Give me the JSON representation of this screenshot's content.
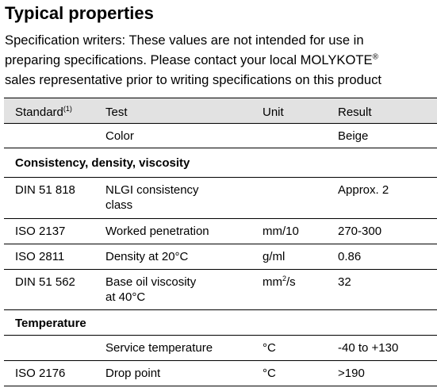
{
  "title": "Typical properties",
  "intro": {
    "line1": "Specification writers: These values are not intended for use in",
    "line2": "preparing specifications. Please contact your local MOLYKOTE",
    "trademark": "®",
    "line3": "sales representative prior to writing specifications on this product"
  },
  "table": {
    "headers": {
      "standard": "Standard",
      "standard_note": "(1)",
      "test": "Test",
      "unit": "Unit",
      "result": "Result"
    },
    "color_row": {
      "standard": "",
      "test": "Color",
      "unit": "",
      "result": "Beige"
    },
    "section_consistency": "Consistency, density, viscosity",
    "consistency_rows": [
      {
        "standard": "DIN 51 818",
        "test_line1": "NLGI consistency",
        "test_line2": "class",
        "unit": "",
        "result": "Approx. 2"
      },
      {
        "standard": "ISO 2137",
        "test": "Worked penetration",
        "unit": "mm/10",
        "result": "270-300"
      },
      {
        "standard": "ISO 2811",
        "test": "Density at 20°C",
        "unit": "g/ml",
        "result": "0.86"
      },
      {
        "standard": "DIN 51 562",
        "test_line1": "Base oil viscosity",
        "test_line2": "at 40°C",
        "unit_base": "mm",
        "unit_exp": "2",
        "unit_tail": "/s",
        "result": "32"
      }
    ],
    "section_temperature": "Temperature",
    "temperature_rows": [
      {
        "standard": "",
        "test": "Service temperature",
        "unit": "°C",
        "result": "-40 to +130"
      },
      {
        "standard": "ISO 2176",
        "test": "Drop point",
        "unit": "°C",
        "result": ">190"
      }
    ]
  }
}
